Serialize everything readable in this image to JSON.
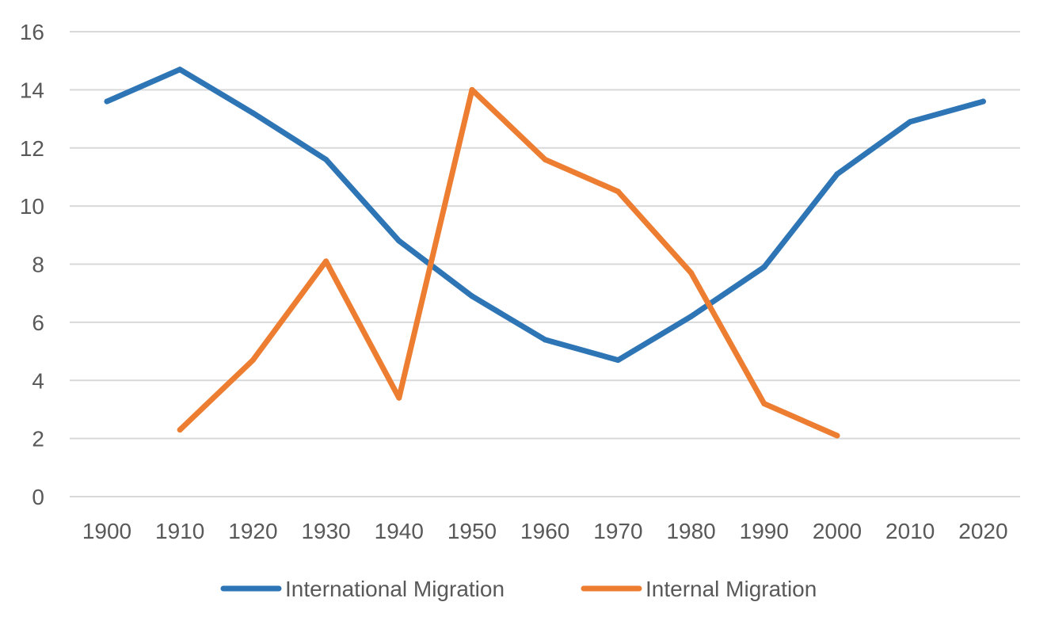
{
  "chart_data": {
    "type": "line",
    "title": "",
    "xlabel": "",
    "ylabel": "",
    "categories": [
      "1900",
      "1910",
      "1920",
      "1930",
      "1940",
      "1950",
      "1960",
      "1970",
      "1980",
      "1990",
      "2000",
      "2010",
      "2020"
    ],
    "ylim": [
      0,
      16
    ],
    "yticks": [
      0,
      2,
      4,
      6,
      8,
      10,
      12,
      14,
      16
    ],
    "grid": true,
    "legend_position": "bottom",
    "series": [
      {
        "name": "International Migration",
        "color": "#2e75b6",
        "values": [
          13.6,
          14.7,
          13.2,
          11.6,
          8.8,
          6.9,
          5.4,
          4.7,
          6.2,
          7.9,
          11.1,
          12.9,
          13.6
        ]
      },
      {
        "name": "Internal Migration",
        "color": "#ed7d31",
        "values": [
          null,
          2.3,
          4.7,
          8.1,
          3.4,
          14.0,
          11.6,
          10.5,
          7.7,
          3.2,
          2.1,
          null,
          null
        ]
      }
    ]
  }
}
